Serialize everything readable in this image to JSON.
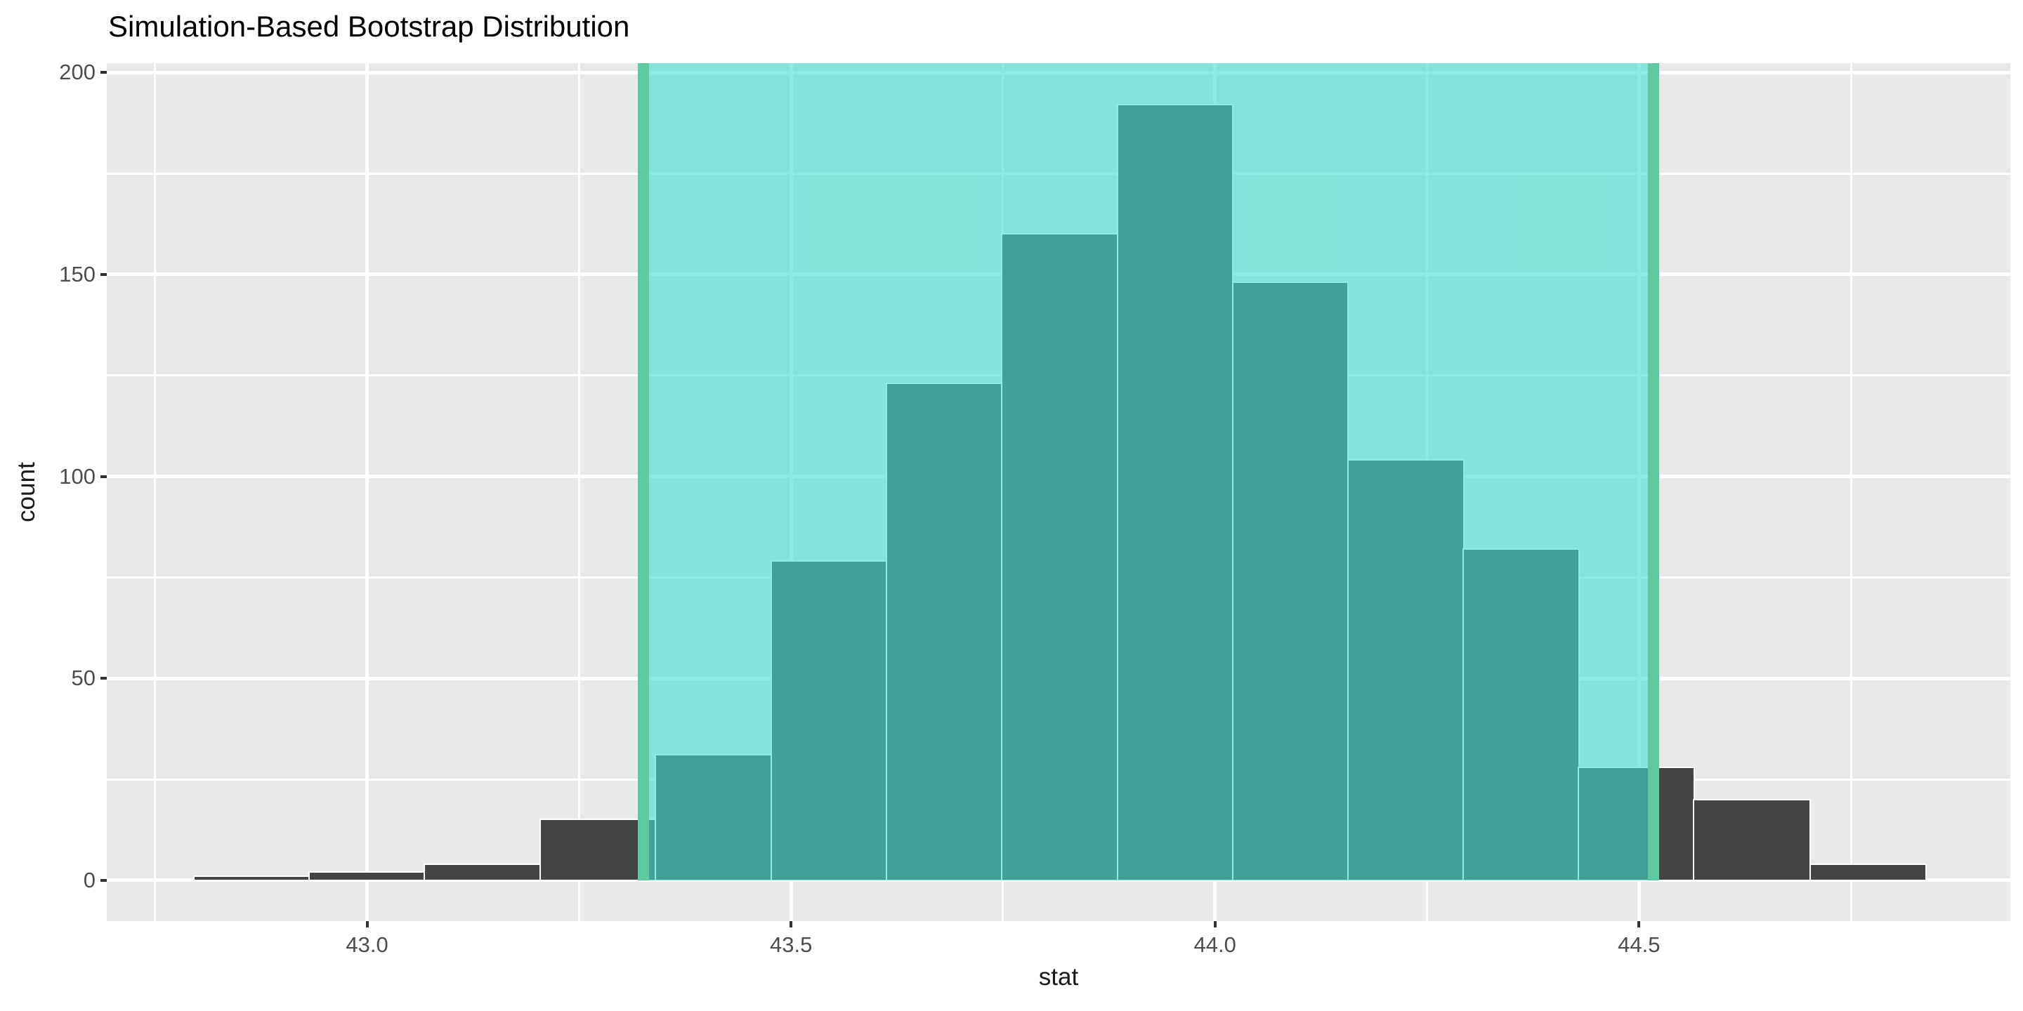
{
  "title": "Simulation-Based Bootstrap Distribution",
  "x_axis": {
    "label": "stat",
    "tick_labels": [
      "43.0",
      "43.5",
      "44.0",
      "44.5"
    ],
    "tick_values": [
      43.0,
      43.5,
      44.0,
      44.5
    ],
    "minor_gridlines": [
      42.75,
      43.25,
      43.75,
      44.25,
      44.75
    ],
    "range": [
      42.693,
      44.938
    ]
  },
  "y_axis": {
    "label": "count",
    "tick_labels": [
      "0",
      "50",
      "100",
      "150",
      "200"
    ],
    "tick_values": [
      0,
      50,
      100,
      150,
      200
    ],
    "minor_gridlines": [
      25,
      75,
      125,
      175
    ],
    "range": [
      -10.1,
      202.3
    ]
  },
  "chart_data": {
    "type": "bar",
    "subtype": "histogram",
    "title": "Simulation-Based Bootstrap Distribution",
    "xlabel": "stat",
    "ylabel": "count",
    "xlim": [
      42.693,
      44.938
    ],
    "ylim": [
      -10.1,
      202.3
    ],
    "grid": "white major and minor gridlines on grey panel",
    "legend_position": "none",
    "bin_edges": [
      42.796,
      42.932,
      43.068,
      43.204,
      43.34,
      43.477,
      43.613,
      43.749,
      43.885,
      44.021,
      44.157,
      44.293,
      44.429,
      44.565,
      44.702,
      44.838
    ],
    "counts": [
      1,
      2,
      4,
      15,
      31,
      79,
      123,
      160,
      192,
      148,
      104,
      82,
      28,
      20,
      4
    ],
    "confidence_interval": {
      "lower": 43.326,
      "upper": 44.517,
      "shaded": true
    },
    "colors": {
      "bar_fill": "#444444",
      "bar_stroke": "#FFFFFF",
      "ci_band_fill": "rgba(64,224,208,0.6)",
      "ci_line": "#5FC99F",
      "panel_bg": "#E9E9E9",
      "gridline": "#FFFFFF",
      "figure_bg": "#FFFFFF",
      "tick_label": "#4D4D4D",
      "axis_title": "#1A1A1A",
      "chart_title": "#000000",
      "tick_mark": "#333333"
    }
  }
}
